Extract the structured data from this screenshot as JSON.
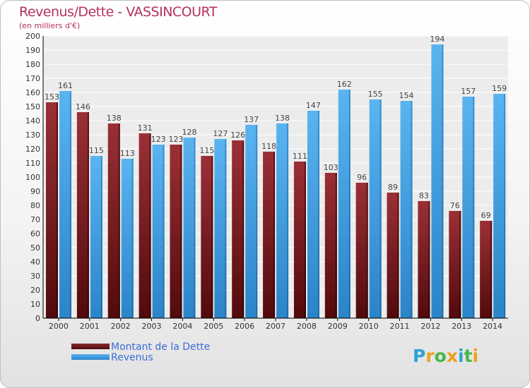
{
  "header": {
    "title": "Revenus/Dette - VASSINCOURT",
    "subtitle": "(en milliers d'€)"
  },
  "chart_data": {
    "type": "bar",
    "title": "Revenus/Dette - VASSINCOURT",
    "ylabel": "(en milliers d'€)",
    "xlabel": "",
    "ylim": [
      0,
      200
    ],
    "ytick_step": 10,
    "grid": true,
    "legend_position": "bottom-left",
    "categories": [
      "2000",
      "2001",
      "2002",
      "2003",
      "2004",
      "2005",
      "2006",
      "2007",
      "2008",
      "2009",
      "2010",
      "2011",
      "2012",
      "2013",
      "2014"
    ],
    "series": [
      {
        "name": "Montant de la Dette",
        "color": "#7a1e22",
        "values": [
          153,
          146,
          138,
          131,
          123,
          115,
          126,
          118,
          111,
          103,
          96,
          89,
          83,
          76,
          69
        ]
      },
      {
        "name": "Revenus",
        "color": "#3aa0e4",
        "values": [
          161,
          115,
          113,
          123,
          128,
          127,
          137,
          138,
          147,
          162,
          155,
          154,
          194,
          157,
          159
        ]
      }
    ]
  },
  "logo": {
    "letters": [
      "P",
      "r",
      "o",
      "x",
      "i",
      "t",
      "i"
    ],
    "colors": [
      "#2aa3d6",
      "#f0a020",
      "#49b649",
      "#f0a020",
      "#2aa3d6",
      "#49b649",
      "#f0a020"
    ]
  }
}
